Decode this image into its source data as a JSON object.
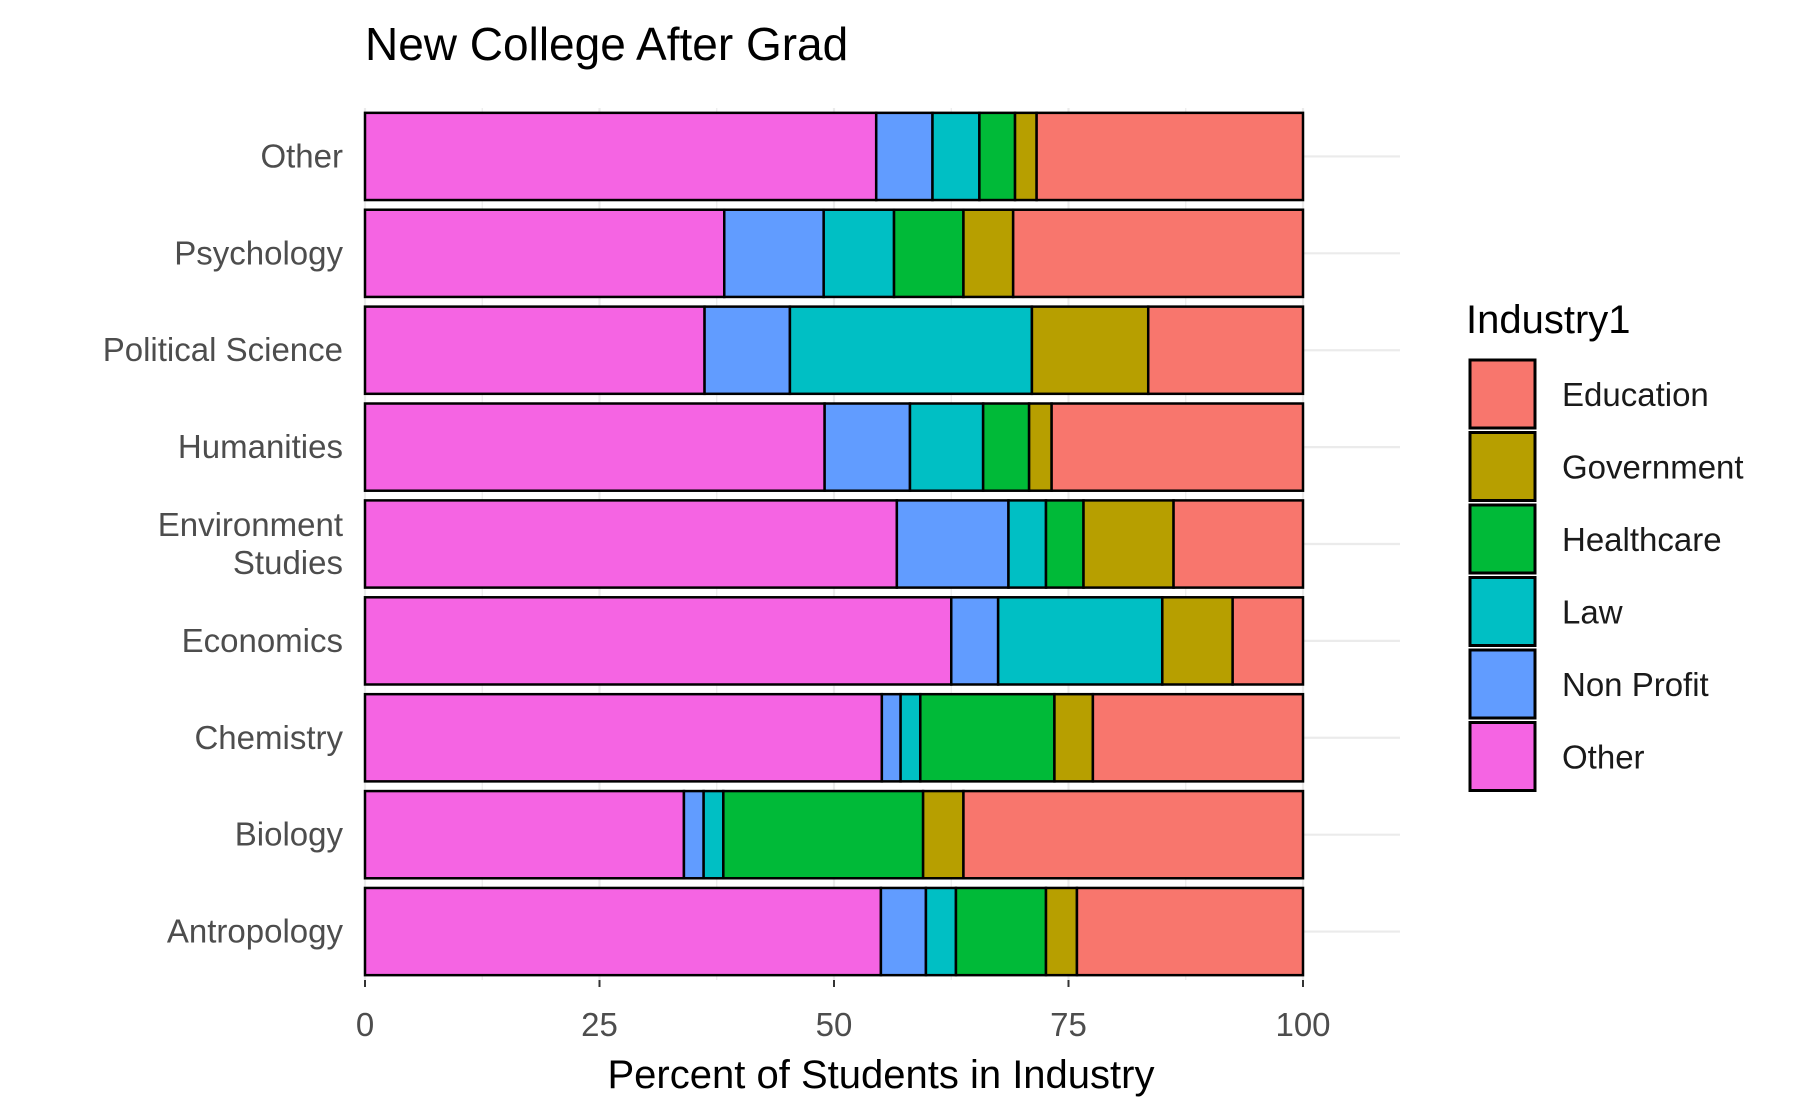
{
  "chart_data": {
    "type": "bar",
    "orientation": "horizontal",
    "stacked": true,
    "title": "New College After Grad",
    "xlabel": "Percent of Students in Industry",
    "ylabel": "",
    "xlim": [
      0,
      100
    ],
    "x_ticks": [
      "0",
      "25",
      "50",
      "75",
      "100"
    ],
    "grid": true,
    "legend_position": "right",
    "legend_title": "Industry1",
    "categories": [
      "Antropology",
      "Biology",
      "Chemistry",
      "Economics",
      "Environment Studies",
      "Humanities",
      "Political Science",
      "Psychology",
      "Other"
    ],
    "category_display": [
      "Antropology",
      "Biology",
      "Chemistry",
      "Economics",
      [
        "Environment",
        "Studies"
      ],
      "Humanities",
      "Political Science",
      "Psychology",
      "Other"
    ],
    "stack_order": [
      "Other",
      "Non Profit",
      "Law",
      "Healthcare",
      "Government",
      "Education"
    ],
    "series": [
      {
        "name": "Education",
        "color": "#F8766D",
        "values": [
          24.1,
          36.2,
          22.4,
          7.5,
          13.8,
          26.8,
          16.5,
          30.9,
          28.4
        ]
      },
      {
        "name": "Government",
        "color": "#B79F00",
        "values": [
          3.3,
          4.3,
          4.1,
          7.5,
          9.6,
          2.4,
          12.4,
          5.3,
          2.3
        ]
      },
      {
        "name": "Healthcare",
        "color": "#00BA38",
        "values": [
          9.6,
          21.3,
          14.3,
          0.0,
          4.0,
          4.9,
          0.0,
          7.4,
          3.8
        ]
      },
      {
        "name": "Law",
        "color": "#00BFC4",
        "values": [
          3.2,
          2.1,
          2.1,
          17.5,
          4.0,
          7.8,
          25.8,
          7.5,
          5.0
        ]
      },
      {
        "name": "Non Profit",
        "color": "#619CFF",
        "values": [
          4.8,
          2.1,
          2.0,
          5.0,
          11.9,
          9.1,
          9.1,
          10.6,
          6.0
        ]
      },
      {
        "name": "Other",
        "color": "#F564E3",
        "values": [
          55.0,
          34.0,
          55.1,
          62.5,
          56.7,
          49.0,
          36.2,
          38.3,
          54.5
        ]
      }
    ]
  }
}
